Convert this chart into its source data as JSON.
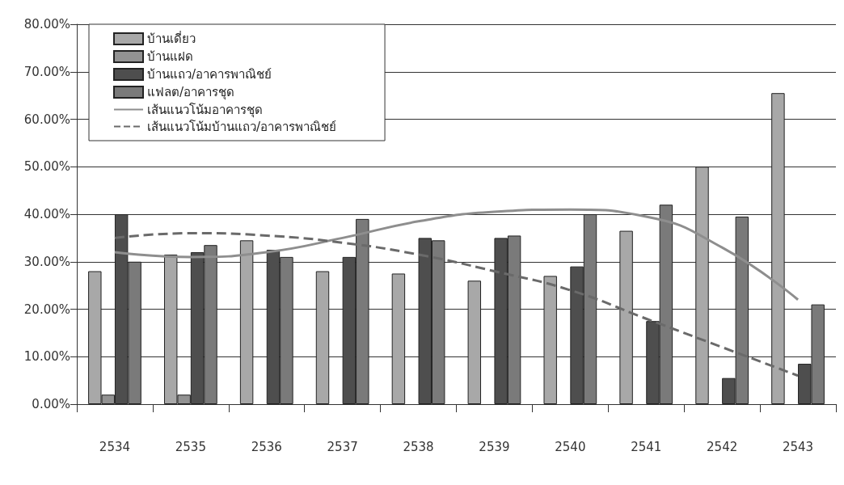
{
  "chart_data": {
    "type": "bar",
    "categories": [
      "2534",
      "2535",
      "2536",
      "2537",
      "2538",
      "2539",
      "2540",
      "2541",
      "2542",
      "2543"
    ],
    "series": [
      {
        "name": "บ้านเดี่ยว",
        "color": "#a8a8a8",
        "values": [
          28,
          31.5,
          34.5,
          28,
          27.5,
          26,
          27,
          36.5,
          50,
          65.5
        ]
      },
      {
        "name": "บ้านแฝด",
        "color": "#929292",
        "values": [
          2,
          2,
          0,
          0,
          0,
          0,
          0,
          0,
          0,
          0
        ]
      },
      {
        "name": "บ้านแถว/อาคารพาณิชย์",
        "color": "#4e4e4e",
        "values": [
          40,
          32,
          32.5,
          31,
          35,
          35,
          29,
          17.5,
          5.5,
          8.5
        ]
      },
      {
        "name": "แฟลต/อาคารชุด",
        "color": "#7a7a7a",
        "values": [
          30,
          33.5,
          31,
          39,
          34.5,
          35.5,
          40,
          42,
          39.5,
          21
        ]
      },
      {
        "name": "เส้นแนวโน้มอาคารชุด",
        "type": "line",
        "line_style": "solid",
        "marker": "none",
        "color": "#8e8e8e",
        "values": [
          32,
          31,
          32,
          35,
          38.5,
          40.5,
          41,
          39.5,
          33,
          22
        ]
      },
      {
        "name": "เส้นแนวโน้มบ้านแถว/อาคารพาณิชย์",
        "type": "line",
        "line_style": "dashed",
        "marker": "none",
        "color": "#6a6a6a",
        "values": [
          35,
          36,
          35.5,
          34,
          31.5,
          28,
          24,
          18,
          12,
          6
        ]
      }
    ],
    "ylim": [
      0,
      80
    ],
    "yticks": [
      {
        "value": 0,
        "label": "0.00%"
      },
      {
        "value": 10,
        "label": "10.00%"
      },
      {
        "value": 20,
        "label": "20.00%"
      },
      {
        "value": 30,
        "label": "30.00%"
      },
      {
        "value": 40,
        "label": "40.00%"
      },
      {
        "value": 50,
        "label": "50.00%"
      },
      {
        "value": 60,
        "label": "60.00%"
      },
      {
        "value": 70,
        "label": "70.00%"
      },
      {
        "value": 80,
        "label": "80.00%"
      }
    ],
    "grid": "y",
    "legend": "top left"
  }
}
